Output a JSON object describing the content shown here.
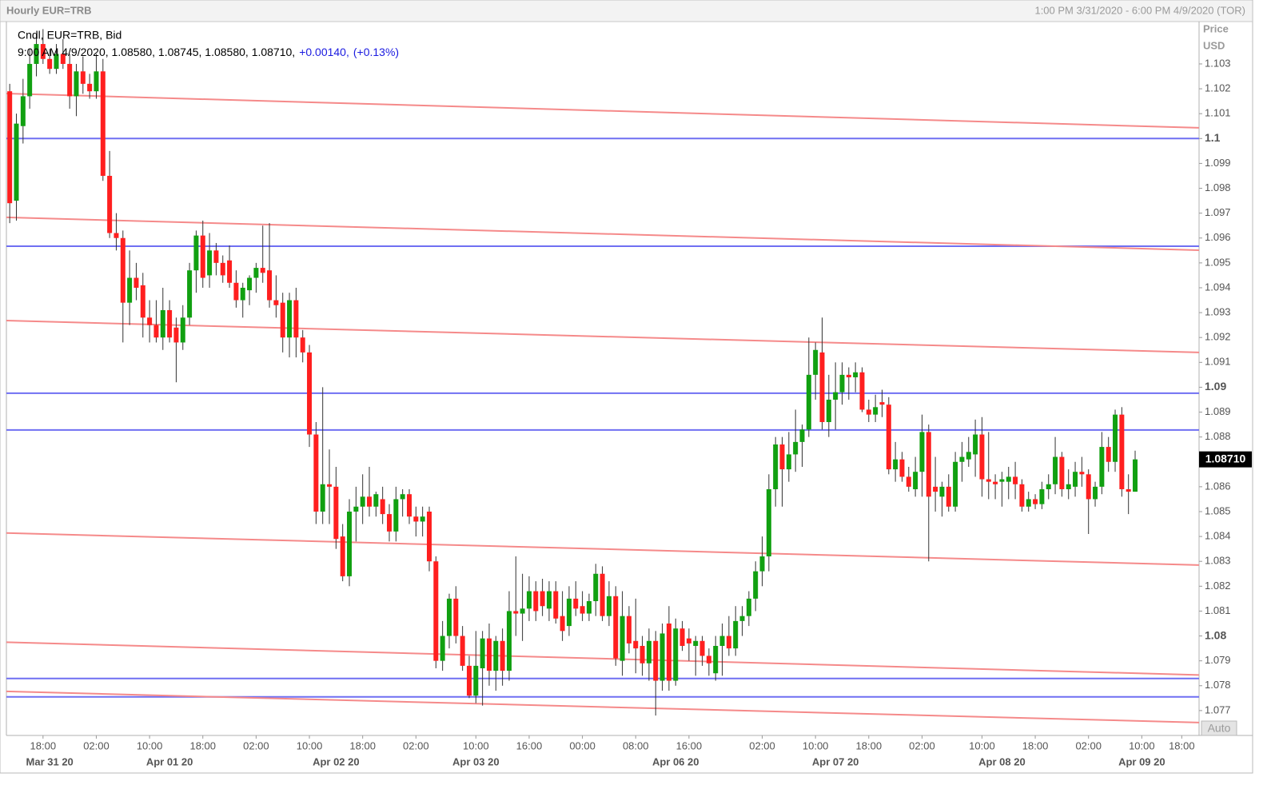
{
  "chart_data": {
    "type": "candlestick",
    "title": "Hourly EUR=TRB",
    "range": "1:00 PM 3/31/2020 - 6:00 PM 4/9/2020 (TOR)",
    "y_axis_label": "Price",
    "y_axis_unit": "USD",
    "legend": {
      "title": "Cndl, EUR=TRB, Bid",
      "info": "9:00 AM 4/9/2020, 1.08580, 1.08745, 1.08580, 1.08710,",
      "change": "+0.00140,",
      "change_pct": "(+0.13%)"
    },
    "button": "Auto",
    "up_color": "#11a011",
    "down_color": "#ff1f1f",
    "hline_color": "#6f6ff2",
    "trend_color": "#f58a8a",
    "open": [
      1.1019,
      1.0975,
      1.1005,
      1.1017,
      1.103,
      1.1038,
      1.1032,
      1.1028,
      1.1034,
      1.103,
      1.1017,
      1.1027,
      1.1022,
      1.1019,
      1.1027,
      1.0985,
      1.0962,
      1.096,
      1.0934,
      1.0944,
      1.0941,
      1.0928,
      1.0925,
      1.092,
      1.0931,
      1.0924,
      1.0918,
      1.0928,
      1.0947,
      1.0961,
      1.0945,
      1.0955,
      1.095,
      1.0951,
      1.0942,
      1.0935,
      1.0939,
      1.0944,
      1.0948,
      1.0947,
      1.0935,
      1.0934,
      1.092,
      1.0935,
      1.092,
      1.0914,
      1.0881,
      1.085,
      1.0861,
      1.086,
      1.084,
      1.0824,
      1.085,
      1.0852,
      1.0856,
      1.0852,
      1.0855,
      1.0849,
      1.0842,
      1.0855,
      1.0857,
      1.0848,
      1.0846,
      1.085,
      1.083,
      1.079,
      1.08,
      1.0815,
      1.08,
      1.0788,
      1.0776,
      1.0787,
      1.0799,
      1.0786,
      1.0798,
      1.0786,
      1.081,
      1.0809,
      1.0811,
      1.0818,
      1.0818,
      1.0811,
      1.0818,
      1.0808,
      1.0804,
      1.0815,
      1.0812,
      1.0809,
      1.0814,
      1.0825,
      1.0808,
      1.0816,
      1.079,
      1.0808,
      1.0798,
      1.0796,
      1.0789,
      1.0798,
      1.0782,
      1.0805,
      1.0782,
      1.0803,
      1.0799,
      1.0796,
      1.0798,
      1.0792,
      1.0785,
      1.0796,
      1.08,
      1.0795,
      1.0806,
      1.0808,
      1.0815,
      1.0826,
      1.0832,
      1.0859,
      1.0877,
      1.0867,
      1.0873,
      1.0878,
      1.0883,
      1.0905,
      1.0914,
      1.0886,
      1.0895,
      1.0898,
      1.0905,
      1.0904,
      1.0906,
      1.0891,
      1.0889,
      1.0894,
      1.0893,
      1.0867,
      1.0871,
      1.0864,
      1.0859,
      1.0866,
      1.0882,
      1.086,
      1.0856,
      1.086,
      1.0852,
      1.087,
      1.0871,
      1.0873,
      1.0881,
      1.0863,
      1.0862,
      1.0862,
      1.0862,
      1.0864,
      1.0861,
      1.0852,
      1.0855,
      1.0853,
      1.0859,
      1.0861,
      1.0872,
      1.0859,
      1.086,
      1.0866,
      1.0865,
      1.0855,
      1.086,
      1.0876,
      1.087,
      1.0889,
      1.0859,
      1.0858
    ],
    "high": [
      1.1022,
      1.101,
      1.1024,
      1.1036,
      1.1042,
      1.1044,
      1.1036,
      1.1038,
      1.104,
      1.1034,
      1.103,
      1.1033,
      1.1026,
      1.1034,
      1.1032,
      1.0995,
      1.097,
      1.0963,
      1.0955,
      1.095,
      1.0946,
      1.0935,
      1.0935,
      1.094,
      1.0935,
      1.0928,
      1.0933,
      1.095,
      1.0963,
      1.0967,
      1.0962,
      1.0958,
      1.0953,
      1.0957,
      1.0947,
      1.0942,
      1.0945,
      1.095,
      1.0965,
      1.0966,
      1.0945,
      1.0938,
      1.0938,
      1.094,
      1.0923,
      1.0917,
      1.0886,
      1.09,
      1.0875,
      1.0868,
      1.0845,
      1.0855,
      1.086,
      1.0865,
      1.0868,
      1.0858,
      1.086,
      1.0853,
      1.086,
      1.0859,
      1.0859,
      1.0852,
      1.0852,
      1.0852,
      1.0832,
      1.0806,
      1.0817,
      1.082,
      1.0804,
      1.0792,
      1.0802,
      1.0802,
      1.0805,
      1.08,
      1.0803,
      1.0818,
      1.0832,
      1.0825,
      1.0824,
      1.0822,
      1.0823,
      1.0822,
      1.0822,
      1.0818,
      1.082,
      1.0822,
      1.0818,
      1.0817,
      1.0829,
      1.0828,
      1.0822,
      1.082,
      1.0818,
      1.0812,
      1.0815,
      1.08,
      1.0803,
      1.0802,
      1.0805,
      1.0812,
      1.0807,
      1.0806,
      1.0803,
      1.08,
      1.08,
      1.0795,
      1.08,
      1.0805,
      1.0808,
      1.0812,
      1.0812,
      1.0818,
      1.083,
      1.084,
      1.0865,
      1.088,
      1.088,
      1.0882,
      1.0891,
      1.0885,
      1.092,
      1.0918,
      1.0928,
      1.0905,
      1.091,
      1.091,
      1.0908,
      1.091,
      1.0908,
      1.0895,
      1.0897,
      1.0899,
      1.0896,
      1.0878,
      1.0874,
      1.0868,
      1.0872,
      1.0889,
      1.0885,
      1.0872,
      1.0862,
      1.0865,
      1.0874,
      1.0878,
      1.088,
      1.0887,
      1.0888,
      1.0882,
      1.0865,
      1.0866,
      1.0868,
      1.087,
      1.0863,
      1.0858,
      1.0857,
      1.0862,
      1.0865,
      1.088,
      1.0874,
      1.0867,
      1.087,
      1.0872,
      1.0867,
      1.0862,
      1.0882,
      1.088,
      1.0891,
      1.0892,
      1.0865,
      1.08745
    ],
    "low": [
      1.0966,
      1.0967,
      1.0998,
      1.1012,
      1.1025,
      1.103,
      1.1026,
      1.1026,
      1.1028,
      1.1012,
      1.1009,
      1.1018,
      1.1016,
      1.1016,
      1.0983,
      1.096,
      1.0955,
      1.0918,
      1.0925,
      1.0935,
      1.092,
      1.0918,
      1.0918,
      1.0915,
      1.0918,
      1.0902,
      1.0915,
      1.0925,
      1.0938,
      1.094,
      1.094,
      1.0945,
      1.0942,
      1.094,
      1.0932,
      1.0928,
      1.0933,
      1.0938,
      1.0942,
      1.0932,
      1.0928,
      1.0914,
      1.0912,
      1.0912,
      1.091,
      1.0876,
      1.0845,
      1.0845,
      1.0845,
      1.0835,
      1.0822,
      1.082,
      1.0838,
      1.0845,
      1.0848,
      1.0848,
      1.0845,
      1.0838,
      1.0838,
      1.0848,
      1.0845,
      1.084,
      1.084,
      1.0826,
      1.0787,
      1.0786,
      1.0795,
      1.0797,
      1.0786,
      1.0775,
      1.0773,
      1.0772,
      1.078,
      1.0778,
      1.078,
      1.0782,
      1.08,
      1.0798,
      1.0806,
      1.0806,
      1.0808,
      1.0806,
      1.0805,
      1.0798,
      1.08,
      1.0808,
      1.0806,
      1.0806,
      1.0808,
      1.0806,
      1.0804,
      1.0788,
      1.0784,
      1.0793,
      1.0785,
      1.0784,
      1.0782,
      1.0768,
      1.0778,
      1.0778,
      1.078,
      1.0794,
      1.079,
      1.0784,
      1.0788,
      1.0784,
      1.0782,
      1.0784,
      1.0792,
      1.0792,
      1.08,
      1.0804,
      1.081,
      1.082,
      1.0826,
      1.0852,
      1.0852,
      1.0862,
      1.0866,
      1.0868,
      1.088,
      1.0895,
      1.0883,
      1.088,
      1.0883,
      1.0893,
      1.0895,
      1.0898,
      1.089,
      1.0886,
      1.0886,
      1.0888,
      1.0865,
      1.0862,
      1.0862,
      1.0858,
      1.0856,
      1.0856,
      1.083,
      1.085,
      1.0848,
      1.085,
      1.085,
      1.0862,
      1.0868,
      1.0864,
      1.0856,
      1.0855,
      1.0855,
      1.0852,
      1.0855,
      1.0855,
      1.085,
      1.085,
      1.0851,
      1.0851,
      1.0855,
      1.0857,
      1.0856,
      1.0855,
      1.0856,
      1.086,
      1.0841,
      1.0852,
      1.0857,
      1.0866,
      1.0866,
      1.0856,
      1.0849,
      1.0858
    ],
    "close": [
      1.0974,
      1.1006,
      1.1017,
      1.103,
      1.1038,
      1.1032,
      1.1028,
      1.1034,
      1.103,
      1.1017,
      1.1027,
      1.1022,
      1.1019,
      1.1027,
      1.0985,
      1.0962,
      1.096,
      1.0934,
      1.0944,
      1.094,
      1.0928,
      1.0925,
      1.092,
      1.0931,
      1.092,
      1.0918,
      1.0928,
      1.0947,
      1.0961,
      1.0944,
      1.0955,
      1.095,
      1.0945,
      1.0942,
      1.0935,
      1.094,
      1.0944,
      1.0948,
      1.0946,
      1.0935,
      1.0933,
      1.092,
      1.0935,
      1.092,
      1.0914,
      1.0881,
      1.085,
      1.0861,
      1.086,
      1.0839,
      1.0824,
      1.085,
      1.0852,
      1.0856,
      1.0852,
      1.0857,
      1.0849,
      1.0842,
      1.0855,
      1.0857,
      1.0848,
      1.0846,
      1.0848,
      1.083,
      1.079,
      1.08,
      1.0815,
      1.08,
      1.0788,
      1.0776,
      1.0788,
      1.0799,
      1.0786,
      1.0798,
      1.0786,
      1.081,
      1.0809,
      1.0811,
      1.0818,
      1.081,
      1.0812,
      1.0818,
      1.0807,
      1.0802,
      1.0815,
      1.0811,
      1.0809,
      1.0814,
      1.0825,
      1.0808,
      1.0816,
      1.0791,
      1.0808,
      1.0797,
      1.0795,
      1.0789,
      1.0798,
      1.0782,
      1.0801,
      1.0782,
      1.0803,
      1.0796,
      1.0797,
      1.0798,
      1.0792,
      1.0789,
      1.0796,
      1.08,
      1.0795,
      1.0806,
      1.0808,
      1.0815,
      1.0826,
      1.0832,
      1.0859,
      1.0877,
      1.0867,
      1.0873,
      1.0878,
      1.0883,
      1.0905,
      1.0915,
      1.0886,
      1.0895,
      1.0898,
      1.0905,
      1.0904,
      1.0906,
      1.0891,
      1.0889,
      1.0892,
      1.0893,
      1.0867,
      1.0871,
      1.0864,
      1.086,
      1.0866,
      1.0882,
      1.0856,
      1.0858,
      1.086,
      1.0852,
      1.087,
      1.0872,
      1.0874,
      1.0881,
      1.0863,
      1.0862,
      1.0861,
      1.0863,
      1.0864,
      1.0861,
      1.0852,
      1.0855,
      1.0853,
      1.0859,
      1.0861,
      1.0872,
      1.0859,
      1.0861,
      1.0866,
      1.0865,
      1.0855,
      1.086,
      1.0876,
      1.087,
      1.0889,
      1.0859,
      1.0858,
      1.0871
    ],
    "xlim": [
      -0.5,
      178.6
    ],
    "xticks": [
      {
        "value": 5,
        "label": "18:00"
      },
      {
        "value": 13,
        "label": "02:00"
      },
      {
        "value": 21,
        "label": "10:00"
      },
      {
        "value": 29,
        "label": "18:00"
      },
      {
        "value": 37,
        "label": "02:00"
      },
      {
        "value": 45,
        "label": "10:00"
      },
      {
        "value": 53,
        "label": "18:00"
      },
      {
        "value": 61,
        "label": "02:00"
      },
      {
        "value": 70,
        "label": "10:00"
      },
      {
        "value": 78,
        "label": "16:00"
      },
      {
        "value": 86,
        "label": "00:00"
      },
      {
        "value": 94,
        "label": "08:00"
      },
      {
        "value": 102,
        "label": "16:00"
      },
      {
        "value": 113,
        "label": "02:00"
      },
      {
        "value": 121,
        "label": "10:00"
      },
      {
        "value": 129,
        "label": "18:00"
      },
      {
        "value": 137,
        "label": "02:00"
      },
      {
        "value": 146,
        "label": "10:00"
      },
      {
        "value": 154,
        "label": "18:00"
      },
      {
        "value": 162,
        "label": "02:00"
      },
      {
        "value": 170,
        "label": "10:00"
      },
      {
        "value": 176,
        "label": "18:00"
      }
    ],
    "date_ticks": [
      {
        "value": 6,
        "label": "Mar 31 20"
      },
      {
        "value": 24,
        "label": "Apr 01 20"
      },
      {
        "value": 49,
        "label": "Apr 02 20"
      },
      {
        "value": 70,
        "label": "Apr 03 20"
      },
      {
        "value": 100,
        "label": "Apr 06 20"
      },
      {
        "value": 124,
        "label": "Apr 07 20"
      },
      {
        "value": 149,
        "label": "Apr 08 20"
      },
      {
        "value": 170,
        "label": "Apr 09 20"
      }
    ],
    "ylim": [
      1.076,
      1.10467
    ],
    "yticks": [
      1.103,
      1.102,
      1.101,
      1.1,
      1.099,
      1.098,
      1.097,
      1.096,
      1.095,
      1.094,
      1.093,
      1.092,
      1.091,
      1.09,
      1.089,
      1.088,
      1.087,
      1.086,
      1.085,
      1.084,
      1.083,
      1.082,
      1.081,
      1.08,
      1.079,
      1.078,
      1.077
    ],
    "hlines": [
      1.1,
      1.09567,
      1.08976,
      1.08828,
      1.07829,
      1.07755
    ],
    "trendlines": [
      {
        "start": 1.10181,
        "end": 1.10043
      },
      {
        "start": 1.09683,
        "end": 1.09551
      },
      {
        "start": 1.09268,
        "end": 1.0914
      },
      {
        "start": 1.08414,
        "end": 1.08285
      },
      {
        "start": 1.07975,
        "end": 1.07843
      },
      {
        "start": 1.07777,
        "end": 1.07652
      }
    ],
    "last_price": {
      "value": 1.0871,
      "label": "1.08710"
    }
  }
}
